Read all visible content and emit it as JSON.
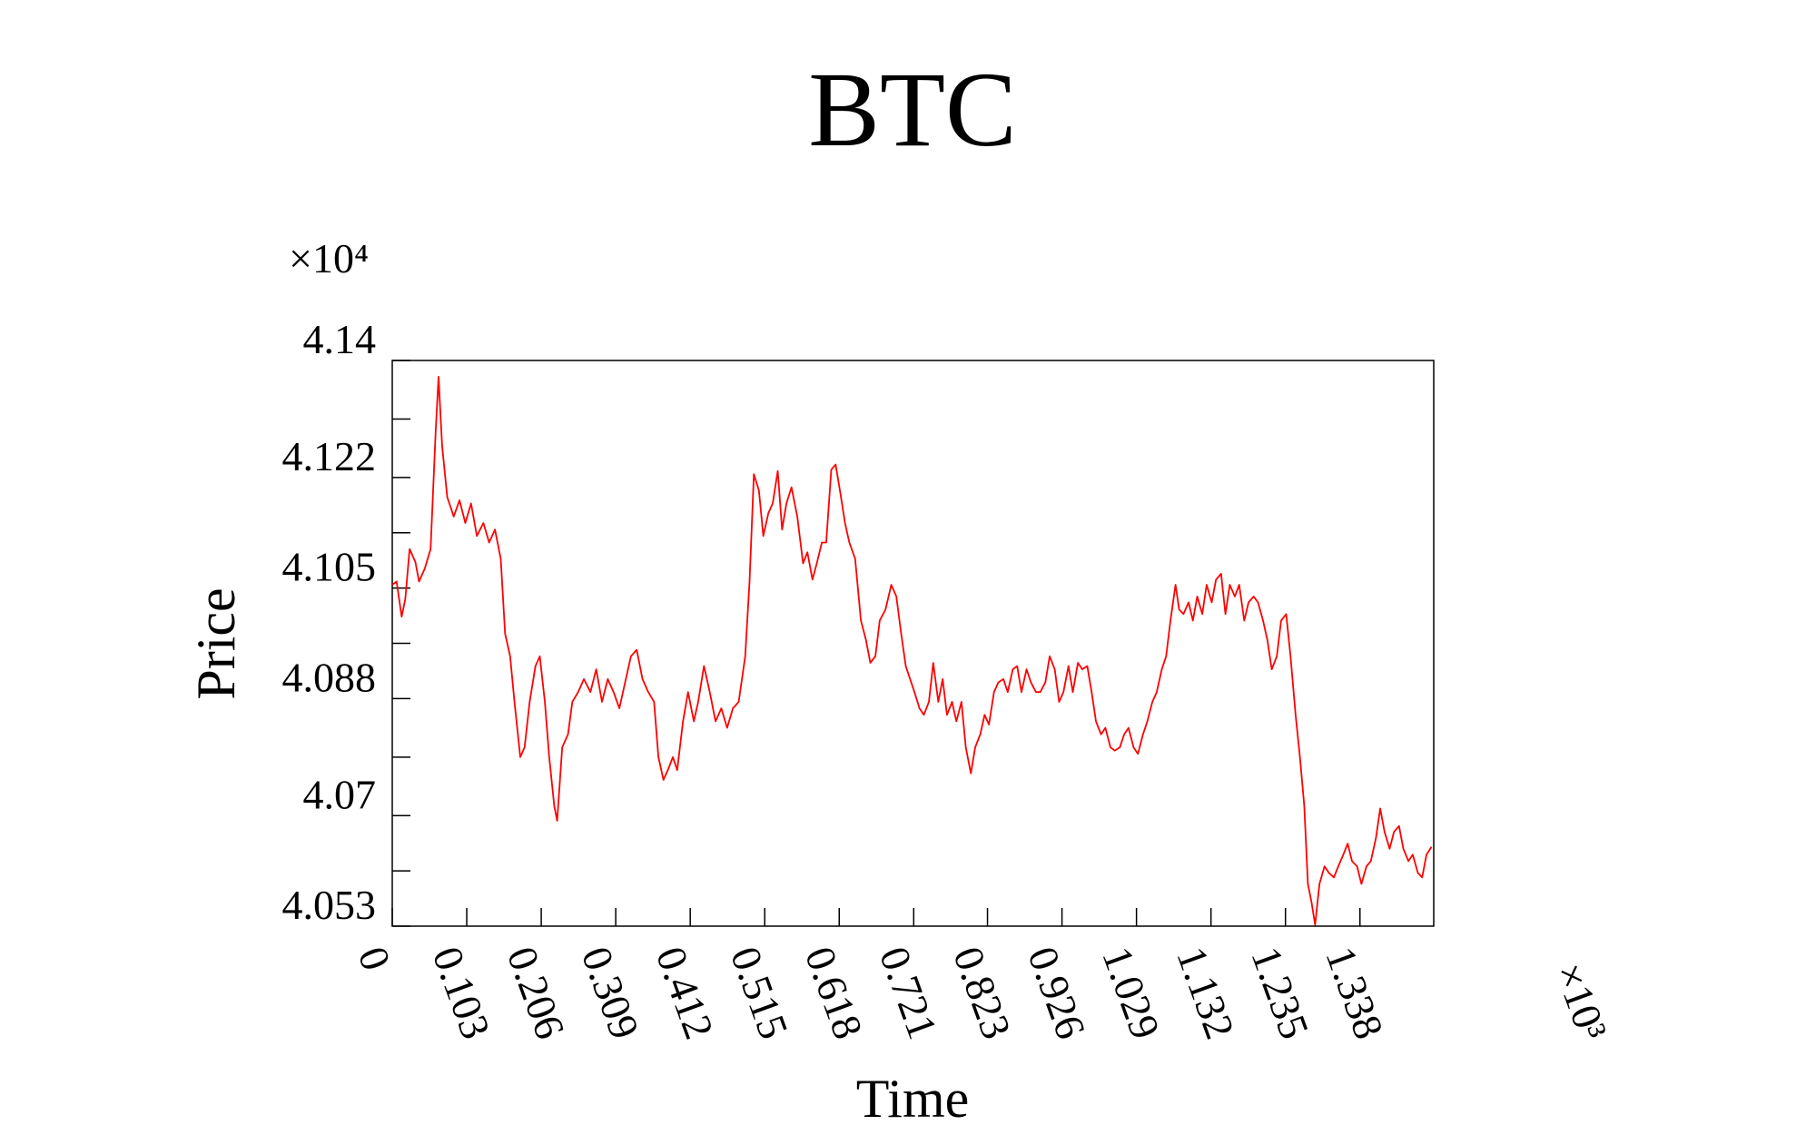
{
  "chart_data": {
    "type": "line",
    "title": "BTC",
    "xlabel": "Time",
    "ylabel": "Price",
    "x_multiplier": "×10³",
    "y_multiplier": "×10⁴",
    "xlim": [
      0,
      1.44
    ],
    "ylim": [
      4.053,
      4.14
    ],
    "xticks": [
      0,
      0.103,
      0.206,
      0.309,
      0.412,
      0.515,
      0.618,
      0.721,
      0.823,
      0.926,
      1.029,
      1.132,
      1.235,
      1.338
    ],
    "yticks": [
      4.053,
      4.07,
      4.088,
      4.105,
      4.122,
      4.14
    ],
    "yminorticks": [
      4.0615,
      4.079,
      4.0965,
      4.1135,
      4.131
    ],
    "grid": false,
    "series": [
      {
        "name": "BTC",
        "color": "#ff0000",
        "x": [
          0,
          0.006,
          0.013,
          0.018,
          0.024,
          0.032,
          0.037,
          0.045,
          0.053,
          0.06,
          0.064,
          0.069,
          0.076,
          0.085,
          0.093,
          0.101,
          0.109,
          0.117,
          0.126,
          0.134,
          0.142,
          0.15,
          0.156,
          0.163,
          0.169,
          0.177,
          0.183,
          0.19,
          0.198,
          0.204,
          0.211,
          0.217,
          0.224,
          0.228,
          0.235,
          0.243,
          0.249,
          0.257,
          0.265,
          0.274,
          0.282,
          0.29,
          0.298,
          0.306,
          0.314,
          0.322,
          0.33,
          0.338,
          0.346,
          0.354,
          0.362,
          0.368,
          0.375,
          0.381,
          0.388,
          0.394,
          0.402,
          0.409,
          0.417,
          0.423,
          0.431,
          0.439,
          0.447,
          0.455,
          0.463,
          0.471,
          0.479,
          0.488,
          0.494,
          0.5,
          0.507,
          0.513,
          0.52,
          0.526,
          0.533,
          0.539,
          0.545,
          0.552,
          0.56,
          0.568,
          0.574,
          0.581,
          0.587,
          0.594,
          0.6,
          0.607,
          0.613,
          0.619,
          0.626,
          0.632,
          0.64,
          0.648,
          0.655,
          0.661,
          0.668,
          0.674,
          0.682,
          0.69,
          0.697,
          0.703,
          0.71,
          0.716,
          0.722,
          0.729,
          0.735,
          0.742,
          0.748,
          0.755,
          0.761,
          0.767,
          0.774,
          0.78,
          0.787,
          0.793,
          0.8,
          0.806,
          0.813,
          0.819,
          0.825,
          0.832,
          0.838,
          0.845,
          0.851,
          0.858,
          0.864,
          0.87,
          0.877,
          0.883,
          0.89,
          0.896,
          0.903,
          0.909,
          0.916,
          0.922,
          0.928,
          0.935,
          0.941,
          0.948,
          0.954,
          0.961,
          0.967,
          0.973,
          0.98,
          0.986,
          0.993,
          0.999,
          1.006,
          1.012,
          1.018,
          1.025,
          1.031,
          1.038,
          1.044,
          1.051,
          1.057,
          1.064,
          1.07,
          1.076,
          1.083,
          1.088,
          1.094,
          1.101,
          1.107,
          1.113,
          1.12,
          1.126,
          1.133,
          1.139,
          1.146,
          1.152,
          1.158,
          1.165,
          1.171,
          1.178,
          1.184,
          1.191,
          1.197,
          1.204,
          1.21,
          1.216,
          1.223,
          1.229,
          1.236,
          1.242,
          1.249,
          1.255,
          1.261,
          1.266,
          1.271,
          1.276,
          1.282,
          1.289,
          1.295,
          1.302,
          1.308,
          1.315,
          1.321,
          1.327,
          1.334,
          1.34,
          1.347,
          1.353,
          1.36,
          1.366,
          1.372,
          1.379,
          1.385,
          1.392,
          1.398,
          1.405,
          1.411,
          1.418,
          1.424,
          1.43,
          1.437
        ],
        "values": [
          4.1055,
          4.106,
          4.1006,
          4.1033,
          4.111,
          4.109,
          4.106,
          4.108,
          4.111,
          4.129,
          4.1375,
          4.1268,
          4.119,
          4.116,
          4.1185,
          4.115,
          4.118,
          4.113,
          4.115,
          4.112,
          4.114,
          4.1095,
          4.098,
          4.0945,
          4.0875,
          4.079,
          4.0805,
          4.0875,
          4.093,
          4.0945,
          4.0875,
          4.079,
          4.0715,
          4.0692,
          4.0805,
          4.0825,
          4.0875,
          4.089,
          4.091,
          4.089,
          4.0925,
          4.0875,
          4.091,
          4.089,
          4.0865,
          4.0905,
          4.0945,
          4.0955,
          4.091,
          4.089,
          4.0875,
          4.079,
          4.0755,
          4.077,
          4.079,
          4.077,
          4.0845,
          4.089,
          4.0845,
          4.0875,
          4.093,
          4.089,
          4.0845,
          4.0865,
          4.0835,
          4.0865,
          4.0875,
          4.0945,
          4.106,
          4.1225,
          4.12,
          4.113,
          4.1165,
          4.118,
          4.123,
          4.114,
          4.118,
          4.1205,
          4.116,
          4.1088,
          4.1105,
          4.1063,
          4.1088,
          4.112,
          4.112,
          4.1232,
          4.124,
          4.12,
          4.115,
          4.112,
          4.1095,
          4.1,
          4.097,
          4.0935,
          4.0945,
          4.1,
          4.1017,
          4.1055,
          4.1037,
          4.0985,
          4.093,
          4.091,
          4.089,
          4.0865,
          4.0855,
          4.0875,
          4.0935,
          4.0875,
          4.091,
          4.0855,
          4.0875,
          4.0845,
          4.0875,
          4.0805,
          4.0765,
          4.0805,
          4.0825,
          4.0855,
          4.084,
          4.089,
          4.0905,
          4.091,
          4.089,
          4.0925,
          4.093,
          4.089,
          4.0925,
          4.0905,
          4.089,
          4.089,
          4.0905,
          4.0945,
          4.0925,
          4.0875,
          4.089,
          4.093,
          4.089,
          4.0935,
          4.0925,
          4.093,
          4.089,
          4.0845,
          4.0825,
          4.0835,
          4.0805,
          4.08,
          4.0805,
          4.0825,
          4.0835,
          4.0805,
          4.0795,
          4.0825,
          4.0845,
          4.0875,
          4.089,
          4.0925,
          4.0945,
          4.1,
          4.1055,
          4.1017,
          4.101,
          4.1028,
          4.1,
          4.1037,
          4.101,
          4.1055,
          4.1028,
          4.1063,
          4.1072,
          4.101,
          4.1055,
          4.1037,
          4.1055,
          4.1,
          4.1028,
          4.1037,
          4.1028,
          4.1,
          4.097,
          4.0925,
          4.0945,
          4.1,
          4.101,
          4.0945,
          4.0855,
          4.079,
          4.0715,
          4.0595,
          4.0567,
          4.0532,
          4.0595,
          4.0622,
          4.0612,
          4.0605,
          4.0622,
          4.064,
          4.0657,
          4.063,
          4.0622,
          4.0595,
          4.0622,
          4.063,
          4.0665,
          4.0711,
          4.0675,
          4.0649,
          4.0675,
          4.0684,
          4.0649,
          4.063,
          4.064,
          4.0612,
          4.0605,
          4.064,
          4.0652
        ]
      }
    ]
  }
}
